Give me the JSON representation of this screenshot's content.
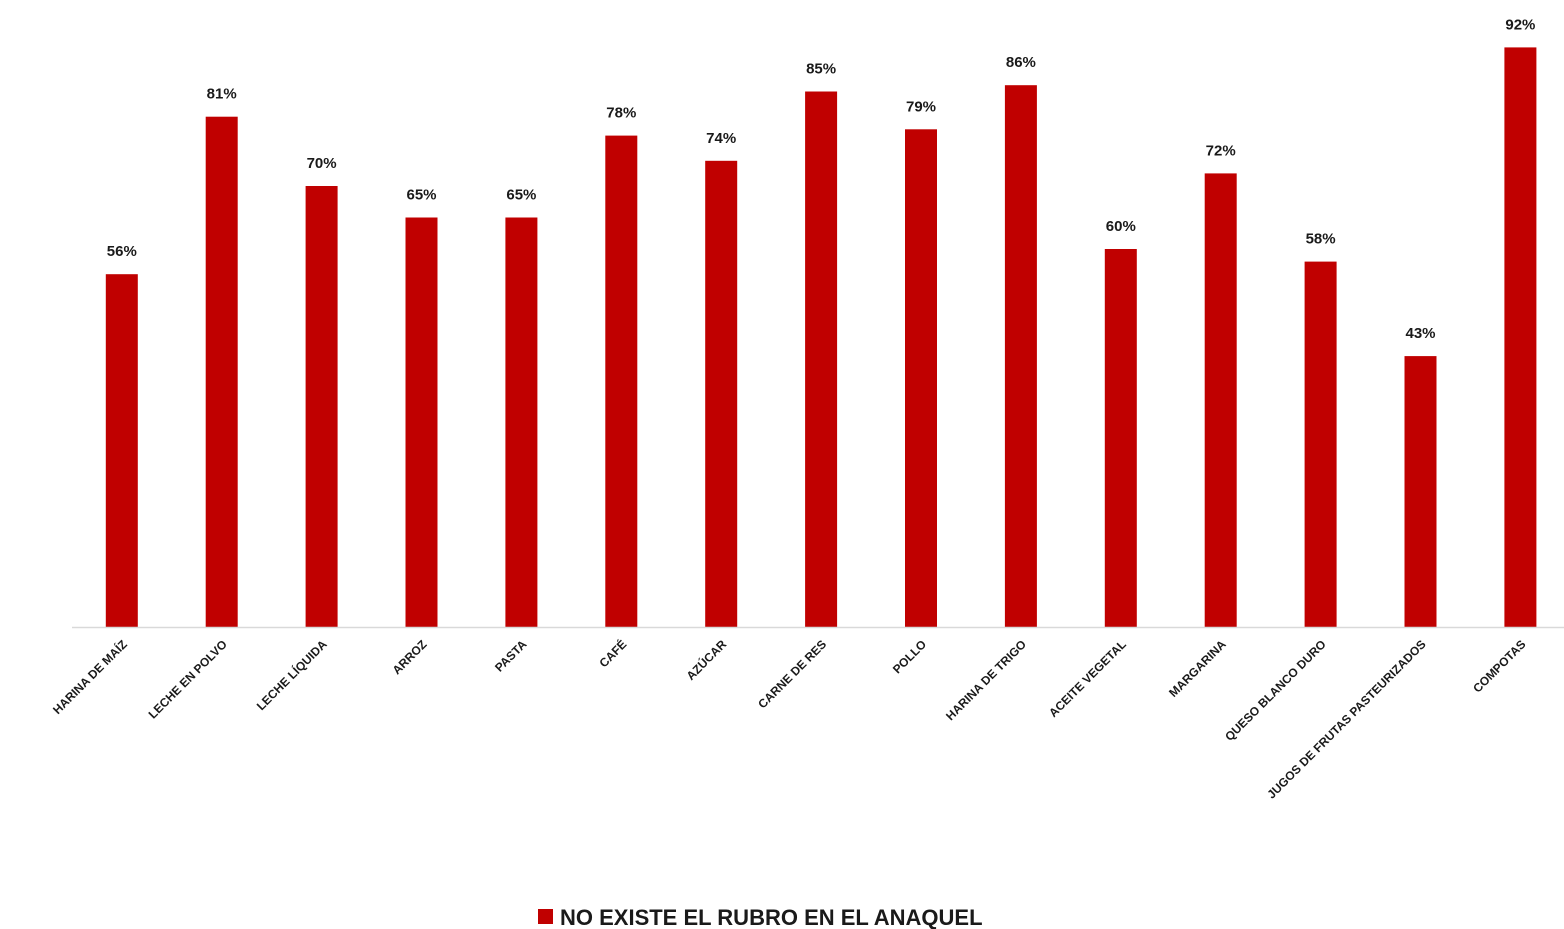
{
  "chart_data": {
    "type": "bar",
    "categories": [
      "HARINA DE MAÍZ",
      "LECHE EN POLVO",
      "LECHE LÍQUIDA",
      "ARROZ",
      "PASTA",
      "CAFÉ",
      "AZÚCAR",
      "CARNE DE RES",
      "POLLO",
      "HARINA DE TRIGO",
      "ACEITE VEGETAL",
      "MARGARINA",
      "QUESO BLANCO DURO",
      "JUGOS DE FRUTAS PASTEURIZADOS",
      "COMPOTAS"
    ],
    "series": [
      {
        "name": "NO EXISTE EL RUBRO EN EL ANAQUEL",
        "values": [
          56,
          81,
          70,
          65,
          65,
          78,
          74,
          85,
          79,
          86,
          60,
          72,
          58,
          43,
          92
        ],
        "labels": [
          "56%",
          "81%",
          "70%",
          "65%",
          "65%",
          "78%",
          "74%",
          "85%",
          "79%",
          "86%",
          "60%",
          "72%",
          "58%",
          "43%",
          "92%"
        ],
        "color": "#c00000"
      }
    ],
    "title": "",
    "xlabel": "",
    "ylabel": "",
    "ylim": [
      0,
      100
    ],
    "grid": false,
    "legend_position": "bottom",
    "axis_color": "#d9d9d9"
  }
}
